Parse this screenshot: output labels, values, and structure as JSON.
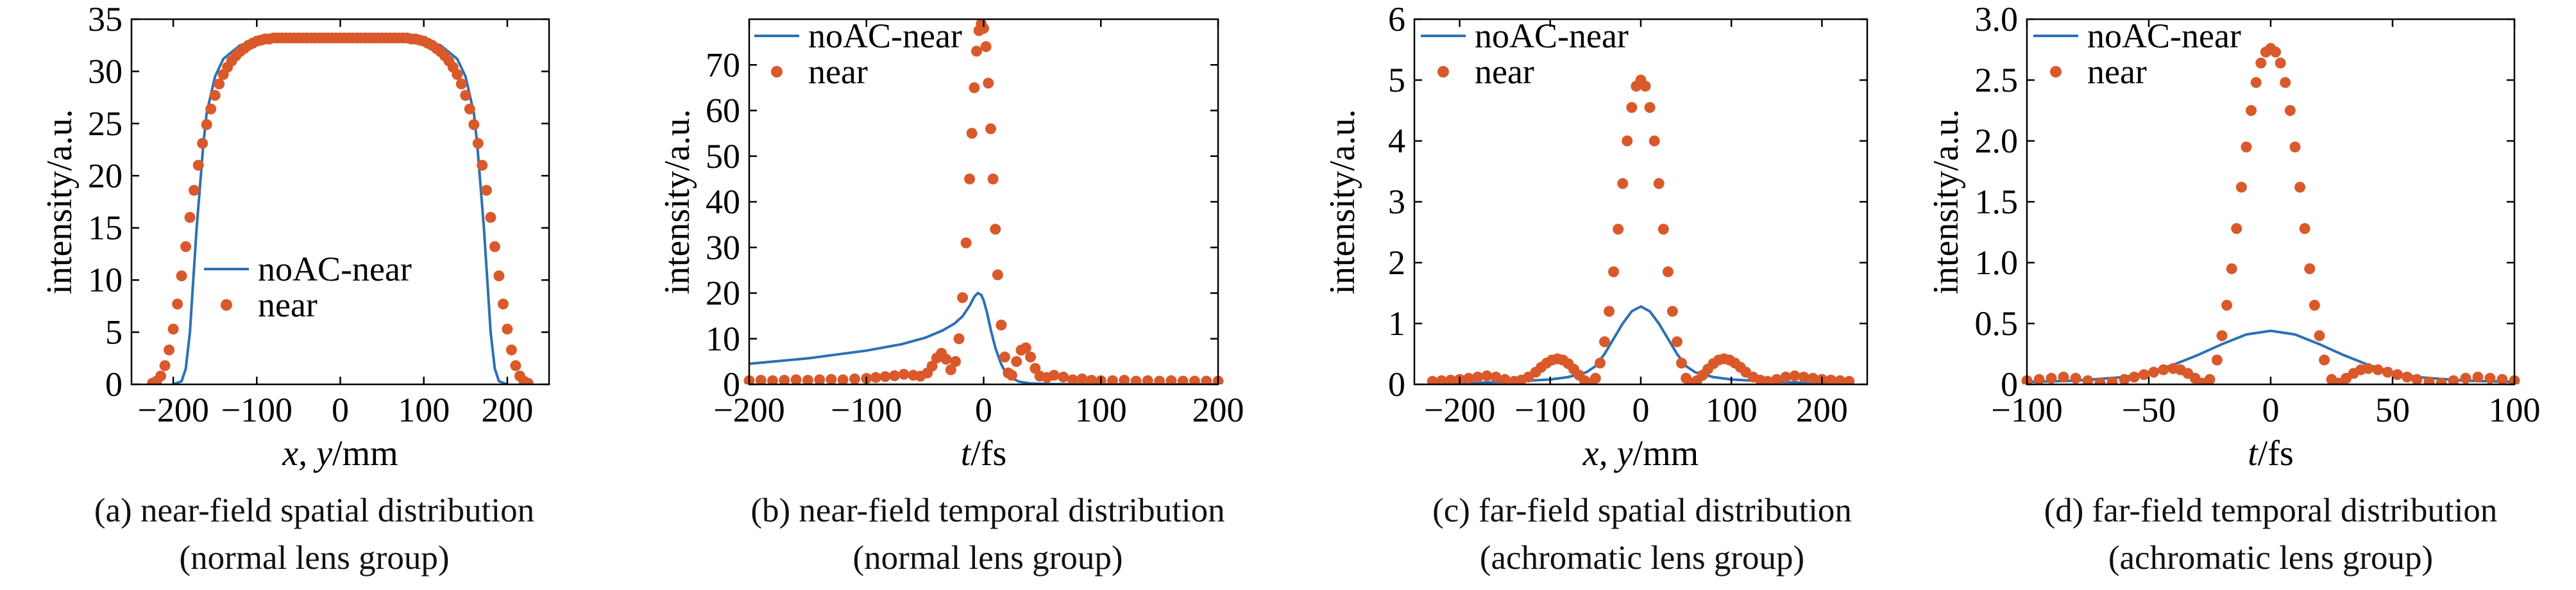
{
  "colors": {
    "series_line": "#2D70B3",
    "series_dots": "#D9592B",
    "axes": "#000000"
  },
  "legend_labels": {
    "line": "noAC-near",
    "dots": "near"
  },
  "chart_data": [
    {
      "id": "a",
      "type": "line",
      "caption": [
        "(a) near-field spatial distribution",
        "(normal lens group)"
      ],
      "xlabel_var": "x, y",
      "xlabel_unit": "/mm",
      "ylabel": "intensity/a.u.",
      "xlim": [
        -250,
        250
      ],
      "ylim": [
        0,
        35
      ],
      "xticks": [
        -200,
        -100,
        0,
        100,
        200
      ],
      "yticks": [
        0,
        5,
        10,
        15,
        20,
        25,
        30,
        35
      ],
      "legend": "center-left",
      "series": [
        {
          "name": "noAC-near",
          "style": "line",
          "x": [
            -200,
            -190,
            -185,
            -180,
            -176,
            -172,
            -168,
            -164,
            -160,
            -150,
            -140,
            -120,
            -100,
            -60,
            -20,
            0,
            20,
            60,
            100,
            120,
            140,
            150,
            160,
            164,
            168,
            172,
            176,
            180,
            185,
            190,
            200
          ],
          "y": [
            0,
            0.3,
            1.5,
            5,
            10,
            15,
            19,
            23,
            26,
            29.5,
            31.2,
            32.5,
            33,
            33.2,
            33.2,
            33.2,
            33.2,
            33.2,
            33,
            32.5,
            31.2,
            29.5,
            26,
            23,
            19,
            15,
            10,
            5,
            1.5,
            0.3,
            0
          ]
        },
        {
          "name": "near",
          "style": "dots",
          "x": [
            -225,
            -220,
            -215,
            -210,
            -205,
            -200,
            -195,
            -190,
            -185,
            -180,
            -175,
            -170,
            -165,
            -160,
            -155,
            -150,
            -145,
            -140,
            -135,
            -130,
            -125,
            -120,
            -115,
            -110,
            -105,
            -100,
            -95,
            -90,
            -85,
            -80,
            -75,
            -70,
            -65,
            -60,
            -55,
            -50,
            -45,
            -40,
            -35,
            -30,
            -25,
            -20,
            -15,
            -10,
            -5,
            0,
            5,
            10,
            15,
            20,
            25,
            30,
            35,
            40,
            45,
            50,
            55,
            60,
            65,
            70,
            75,
            80,
            85,
            90,
            95,
            100,
            105,
            110,
            115,
            120,
            125,
            130,
            135,
            140,
            145,
            150,
            155,
            160,
            165,
            170,
            175,
            180,
            185,
            190,
            195,
            200,
            205,
            210,
            215,
            220,
            225
          ],
          "y": [
            0.1,
            0.3,
            0.8,
            1.8,
            3.3,
            5.3,
            7.7,
            10.4,
            13.2,
            16.0,
            18.6,
            21.0,
            23.1,
            24.9,
            26.4,
            27.7,
            28.8,
            29.7,
            30.4,
            31.0,
            31.5,
            31.9,
            32.2,
            32.5,
            32.7,
            32.9,
            33.0,
            33.1,
            33.1,
            33.2,
            33.2,
            33.2,
            33.2,
            33.2,
            33.2,
            33.2,
            33.2,
            33.2,
            33.2,
            33.2,
            33.2,
            33.2,
            33.2,
            33.2,
            33.2,
            33.2,
            33.2,
            33.2,
            33.2,
            33.2,
            33.2,
            33.2,
            33.2,
            33.2,
            33.2,
            33.2,
            33.2,
            33.2,
            33.2,
            33.2,
            33.2,
            33.2,
            33.1,
            33.1,
            33.0,
            32.9,
            32.7,
            32.5,
            32.2,
            31.9,
            31.5,
            31.0,
            30.4,
            29.7,
            28.8,
            27.7,
            26.4,
            24.9,
            23.1,
            21.0,
            18.6,
            16.0,
            13.2,
            10.4,
            7.7,
            5.3,
            3.3,
            1.8,
            0.8,
            0.3,
            0.1
          ]
        }
      ]
    },
    {
      "id": "b",
      "type": "line",
      "caption": [
        "(b) near-field temporal distribution",
        "(normal lens group)"
      ],
      "xlabel_var": "t",
      "xlabel_unit": "/fs",
      "ylabel": "intensity/a.u.",
      "xlim": [
        -200,
        200
      ],
      "ylim": [
        0,
        80
      ],
      "xticks": [
        -200,
        -100,
        0,
        100,
        200
      ],
      "yticks": [
        0,
        10,
        20,
        30,
        40,
        50,
        60,
        70
      ],
      "legend": "top-left",
      "series": [
        {
          "name": "noAC-near",
          "style": "line",
          "x": [
            -200,
            -150,
            -100,
            -70,
            -50,
            -35,
            -25,
            -18,
            -12,
            -8,
            -5,
            -2,
            0,
            3,
            6,
            10,
            15,
            20,
            30,
            40,
            60,
            100,
            200
          ],
          "y": [
            4.5,
            5.7,
            7.4,
            8.8,
            10.2,
            11.8,
            13.3,
            14.9,
            17.2,
            19.2,
            20.0,
            19.6,
            18.4,
            15.6,
            12.0,
            8.0,
            4.4,
            2.0,
            0.6,
            0.2,
            0.05,
            0,
            0
          ]
        },
        {
          "name": "near",
          "style": "dots",
          "x": [
            -200,
            -190,
            -180,
            -170,
            -160,
            -150,
            -140,
            -130,
            -120,
            -110,
            -100,
            -92,
            -84,
            -76,
            -68,
            -60,
            -54,
            -48,
            -44,
            -40,
            -36,
            -32,
            -28,
            -24,
            -21,
            -18,
            -15,
            -12,
            -10,
            -8,
            -6,
            -4,
            -2,
            0,
            2,
            4,
            6,
            8,
            10,
            12,
            15,
            18,
            21,
            24,
            28,
            32,
            36,
            40,
            44,
            48,
            54,
            60,
            68,
            76,
            84,
            92,
            100,
            110,
            120,
            130,
            140,
            150,
            160,
            170,
            180,
            190,
            200
          ],
          "y": [
            0.8,
            0.9,
            0.8,
            0.9,
            1.0,
            0.9,
            1.0,
            1.1,
            1.0,
            1.2,
            1.3,
            1.5,
            1.7,
            1.9,
            2.2,
            2.0,
            1.8,
            2.5,
            4.0,
            5.8,
            6.8,
            5.5,
            3.2,
            5.0,
            10.0,
            19.0,
            31.0,
            45.0,
            55.0,
            65.0,
            73.0,
            77.5,
            79.0,
            78.0,
            74.0,
            66.0,
            56.0,
            45.0,
            34.0,
            24.0,
            13.0,
            6.0,
            2.5,
            2.0,
            5.0,
            7.5,
            8.0,
            6.0,
            3.5,
            1.8,
            1.5,
            2.0,
            1.6,
            1.0,
            1.2,
            0.9,
            0.8,
            0.8,
            0.9,
            0.7,
            0.8,
            0.7,
            0.8,
            0.7,
            0.7,
            0.7,
            0.7
          ]
        }
      ]
    },
    {
      "id": "c",
      "type": "line",
      "caption": [
        "(c) far-field spatial distribution",
        "(achromatic lens group)"
      ],
      "xlabel_var": "x, y",
      "xlabel_unit": "/mm",
      "ylabel": "intensity/a.u.",
      "xlim": [
        -250,
        250
      ],
      "ylim": [
        0,
        6
      ],
      "xticks": [
        -200,
        -100,
        0,
        100,
        200
      ],
      "yticks": [
        0,
        1,
        2,
        3,
        4,
        5,
        6
      ],
      "legend": "top-left",
      "series": [
        {
          "name": "noAC-near",
          "style": "line",
          "x": [
            -230,
            -200,
            -150,
            -100,
            -80,
            -60,
            -50,
            -40,
            -30,
            -20,
            -10,
            0,
            10,
            20,
            30,
            40,
            50,
            60,
            80,
            100,
            150,
            200,
            230
          ],
          "y": [
            0.01,
            0.02,
            0.04,
            0.08,
            0.12,
            0.2,
            0.3,
            0.5,
            0.75,
            1.0,
            1.2,
            1.28,
            1.2,
            1.0,
            0.75,
            0.5,
            0.3,
            0.2,
            0.12,
            0.08,
            0.04,
            0.02,
            0.01
          ]
        },
        {
          "name": "near",
          "style": "dots",
          "x": [
            -230,
            -220,
            -210,
            -200,
            -190,
            -180,
            -170,
            -160,
            -150,
            -140,
            -132,
            -124,
            -116,
            -110,
            -104,
            -98,
            -92,
            -86,
            -80,
            -74,
            -68,
            -62,
            -56,
            -50,
            -45,
            -40,
            -35,
            -30,
            -25,
            -20,
            -15,
            -10,
            -5,
            0,
            5,
            10,
            15,
            20,
            25,
            30,
            35,
            40,
            45,
            50,
            56,
            62,
            68,
            74,
            80,
            86,
            92,
            98,
            104,
            110,
            116,
            124,
            132,
            140,
            150,
            160,
            170,
            180,
            190,
            200,
            210,
            220,
            230
          ],
          "y": [
            0.05,
            0.06,
            0.07,
            0.08,
            0.1,
            0.12,
            0.14,
            0.12,
            0.08,
            0.05,
            0.07,
            0.12,
            0.2,
            0.28,
            0.35,
            0.4,
            0.42,
            0.4,
            0.34,
            0.25,
            0.15,
            0.06,
            0.02,
            0.1,
            0.35,
            0.7,
            1.2,
            1.85,
            2.55,
            3.3,
            4.0,
            4.55,
            4.9,
            5.0,
            4.9,
            4.55,
            4.0,
            3.3,
            2.55,
            1.85,
            1.2,
            0.7,
            0.35,
            0.1,
            0.02,
            0.06,
            0.15,
            0.25,
            0.34,
            0.4,
            0.42,
            0.4,
            0.35,
            0.28,
            0.2,
            0.12,
            0.07,
            0.05,
            0.08,
            0.12,
            0.14,
            0.12,
            0.1,
            0.08,
            0.07,
            0.06,
            0.05
          ]
        }
      ]
    },
    {
      "id": "d",
      "type": "line",
      "caption": [
        "(d) far-field temporal distribution",
        "(achromatic lens group)"
      ],
      "xlabel_var": "t",
      "xlabel_unit": "/fs",
      "ylabel": "intensity/a.u.",
      "xlim": [
        -100,
        100
      ],
      "ylim": [
        0,
        3.0
      ],
      "xticks": [
        -100,
        -50,
        0,
        50,
        100
      ],
      "yticks": [
        0,
        0.5,
        1.0,
        1.5,
        2.0,
        2.5,
        3.0
      ],
      "yticklabels": [
        "0",
        "0.5",
        "1.0",
        "1.5",
        "2.0",
        "2.5",
        "3.0"
      ],
      "legend": "top-left",
      "series": [
        {
          "name": "noAC-near",
          "style": "line",
          "x": [
            -100,
            -80,
            -60,
            -50,
            -40,
            -30,
            -20,
            -10,
            0,
            10,
            20,
            30,
            40,
            50,
            60,
            80,
            100
          ],
          "y": [
            0.02,
            0.03,
            0.06,
            0.1,
            0.16,
            0.24,
            0.33,
            0.41,
            0.44,
            0.41,
            0.33,
            0.24,
            0.16,
            0.1,
            0.06,
            0.03,
            0.02
          ]
        },
        {
          "name": "near",
          "style": "dots",
          "x": [
            -100,
            -95,
            -90,
            -85,
            -80,
            -75,
            -70,
            -65,
            -60,
            -56,
            -52,
            -48,
            -44,
            -40,
            -37,
            -34,
            -31,
            -28,
            -25,
            -22,
            -20,
            -18,
            -16,
            -14,
            -12,
            -10,
            -8,
            -6,
            -4,
            -2,
            0,
            2,
            4,
            6,
            8,
            10,
            12,
            14,
            16,
            18,
            20,
            22,
            25,
            28,
            31,
            34,
            37,
            40,
            44,
            48,
            52,
            56,
            60,
            65,
            70,
            75,
            80,
            85,
            90,
            95,
            100
          ],
          "y": [
            0.03,
            0.04,
            0.05,
            0.06,
            0.05,
            0.03,
            0.01,
            0.02,
            0.04,
            0.06,
            0.08,
            0.1,
            0.12,
            0.13,
            0.12,
            0.09,
            0.05,
            0.01,
            0.04,
            0.2,
            0.4,
            0.65,
            0.95,
            1.28,
            1.62,
            1.95,
            2.25,
            2.48,
            2.64,
            2.73,
            2.76,
            2.73,
            2.64,
            2.48,
            2.25,
            1.95,
            1.62,
            1.28,
            0.95,
            0.65,
            0.4,
            0.2,
            0.04,
            0.01,
            0.05,
            0.09,
            0.12,
            0.13,
            0.12,
            0.1,
            0.08,
            0.06,
            0.04,
            0.02,
            0.01,
            0.03,
            0.05,
            0.06,
            0.05,
            0.04,
            0.03
          ]
        }
      ]
    }
  ]
}
